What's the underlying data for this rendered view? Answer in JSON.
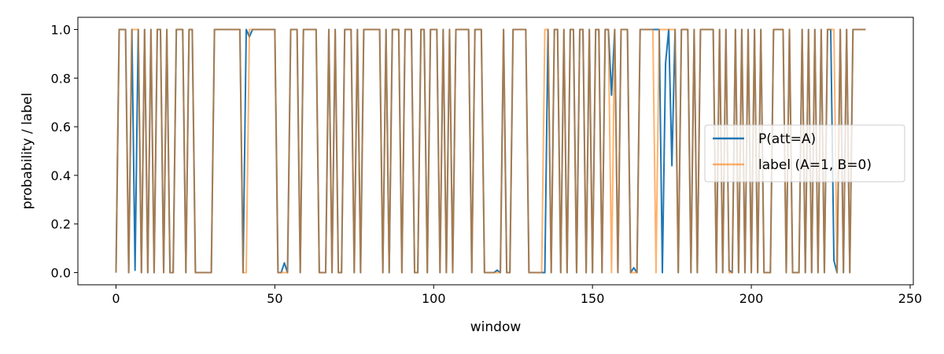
{
  "chart_data": {
    "type": "line",
    "title": "",
    "xlabel": "window",
    "ylabel": "probability / label",
    "xlim": [
      -12,
      251
    ],
    "ylim": [
      -0.05,
      1.05
    ],
    "xticks": [
      0,
      50,
      100,
      150,
      200,
      250
    ],
    "yticks": [
      0.0,
      0.2,
      0.4,
      0.6,
      0.8,
      1.0
    ],
    "xtick_labels": [
      "0",
      "50",
      "100",
      "150",
      "200",
      "250"
    ],
    "ytick_labels": [
      "0.0",
      "0.2",
      "0.4",
      "0.6",
      "0.8",
      "1.0"
    ],
    "grid": false,
    "legend_position": "center-right",
    "series": [
      {
        "name": "P(att=A)",
        "color": "#1f77b4",
        "values": [
          0,
          1,
          1,
          1,
          0,
          1,
          0.01,
          1,
          0,
          1,
          0,
          1,
          0,
          1,
          1,
          0,
          1,
          0,
          0,
          1,
          1,
          1,
          0,
          1,
          1,
          0,
          0,
          0,
          0,
          0,
          0,
          1,
          1,
          1,
          1,
          1,
          1,
          1,
          1,
          1,
          0,
          1,
          0.97,
          1,
          1,
          1,
          1,
          1,
          1,
          1,
          1,
          0,
          0,
          0.04,
          0,
          1,
          1,
          1,
          0,
          1,
          1,
          1,
          1,
          1,
          0,
          0,
          0,
          1,
          0,
          1,
          0,
          0,
          1,
          1,
          1,
          0,
          1,
          0,
          1,
          1,
          1,
          1,
          1,
          1,
          0,
          1,
          0,
          1,
          1,
          1,
          0,
          1,
          1,
          1,
          0,
          0,
          1,
          1,
          0,
          1,
          1,
          1,
          0,
          1,
          0,
          1,
          0,
          1,
          1,
          1,
          1,
          1,
          0,
          1,
          1,
          1,
          0,
          0,
          0,
          0,
          0.01,
          0,
          1,
          0,
          0,
          1,
          1,
          1,
          1,
          1,
          0,
          0,
          0,
          0,
          0,
          0,
          1,
          0,
          1,
          1,
          0,
          1,
          0,
          1,
          1,
          0,
          1,
          1,
          0,
          1,
          0,
          1,
          1,
          0,
          1,
          1,
          0.73,
          1,
          0,
          1,
          1,
          1,
          0,
          0.02,
          0,
          1,
          1,
          1,
          1,
          1,
          1,
          1,
          0,
          0.86,
          1,
          0.44,
          1,
          0,
          1,
          1,
          1,
          0,
          1,
          0,
          1,
          1,
          1,
          1,
          1,
          0,
          1,
          0,
          1,
          0.01,
          0,
          1,
          0,
          1,
          0,
          1,
          0,
          1,
          0,
          1,
          0,
          0,
          0,
          1,
          1,
          1,
          1,
          0,
          1,
          0,
          0,
          0,
          1,
          0,
          1,
          0,
          1,
          0,
          1,
          0,
          1,
          1,
          0.05,
          0,
          1,
          0,
          1,
          0,
          1,
          1,
          1,
          1,
          1
        ]
      },
      {
        "name": "label (A=1, B=0)",
        "color": "#ff7f0e",
        "values": [
          0,
          1,
          1,
          1,
          0,
          1,
          1,
          1,
          0,
          1,
          0,
          1,
          0,
          1,
          1,
          0,
          1,
          0,
          0,
          1,
          1,
          1,
          0,
          1,
          1,
          0,
          0,
          0,
          0,
          0,
          0,
          1,
          1,
          1,
          1,
          1,
          1,
          1,
          1,
          1,
          0,
          0,
          1,
          1,
          1,
          1,
          1,
          1,
          1,
          1,
          1,
          0,
          0,
          0,
          0,
          1,
          1,
          1,
          0,
          1,
          1,
          1,
          1,
          1,
          0,
          0,
          0,
          1,
          0,
          1,
          0,
          0,
          1,
          1,
          1,
          0,
          1,
          0,
          1,
          1,
          1,
          1,
          1,
          1,
          0,
          1,
          0,
          1,
          1,
          1,
          0,
          1,
          1,
          1,
          0,
          0,
          1,
          1,
          0,
          1,
          1,
          1,
          0,
          1,
          0,
          1,
          0,
          1,
          1,
          1,
          1,
          1,
          0,
          1,
          1,
          1,
          0,
          0,
          0,
          0,
          0,
          0,
          1,
          0,
          0,
          1,
          1,
          1,
          1,
          1,
          0,
          0,
          0,
          0,
          0,
          1,
          1,
          0,
          1,
          1,
          0,
          1,
          0,
          1,
          1,
          0,
          1,
          1,
          0,
          1,
          0,
          1,
          1,
          0,
          1,
          1,
          0,
          1,
          0,
          1,
          1,
          1,
          0,
          0,
          0,
          1,
          1,
          1,
          1,
          1,
          0,
          1,
          1,
          1,
          1,
          1,
          1,
          0,
          1,
          1,
          1,
          0,
          1,
          0,
          1,
          1,
          1,
          1,
          1,
          0,
          1,
          0,
          1,
          0,
          0,
          1,
          0,
          1,
          0,
          1,
          0,
          1,
          0,
          1,
          0,
          0,
          0,
          1,
          1,
          1,
          1,
          0,
          1,
          0,
          0,
          0,
          1,
          0,
          1,
          0,
          1,
          0,
          1,
          0,
          1,
          1,
          1,
          0,
          1,
          0,
          1,
          0,
          1,
          1,
          1,
          1,
          1
        ]
      }
    ]
  }
}
